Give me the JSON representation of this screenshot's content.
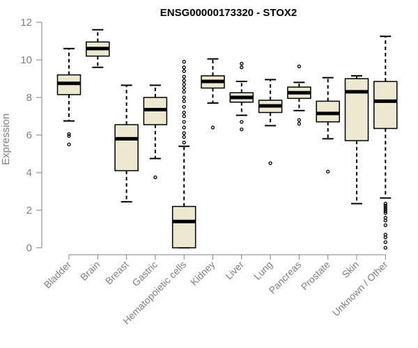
{
  "chart_data": {
    "type": "boxplot",
    "title": "ENSG00000173320 - STOX2",
    "ylabel": "Expression",
    "xlabel": "",
    "ylim": [
      0,
      12
    ],
    "yticks": [
      0,
      2,
      4,
      6,
      8,
      10,
      12
    ],
    "box_color": "#EDE8D0",
    "categories": [
      "Bladder",
      "Brain",
      "Breast",
      "Gastric",
      "Hematopoietic cells",
      "Kidney",
      "Liver",
      "Lung",
      "Pancreas",
      "Prostate",
      "Skin",
      "Unknown / Other"
    ],
    "boxes": [
      {
        "name": "Bladder",
        "min": 6.75,
        "q1": 8.15,
        "median": 8.75,
        "q3": 9.2,
        "max": 10.6,
        "outliers": [
          6.05,
          5.95,
          5.5
        ]
      },
      {
        "name": "Brain",
        "min": 9.6,
        "q1": 10.2,
        "median": 10.6,
        "q3": 10.95,
        "max": 11.6,
        "outliers": []
      },
      {
        "name": "Breast",
        "min": 2.45,
        "q1": 4.1,
        "median": 5.8,
        "q3": 6.55,
        "max": 8.65,
        "outliers": []
      },
      {
        "name": "Gastric",
        "min": 4.75,
        "q1": 6.55,
        "median": 7.35,
        "q3": 8.0,
        "max": 8.65,
        "outliers": [
          3.75
        ]
      },
      {
        "name": "Hematopoietic cells",
        "min": 0.0,
        "q1": 0.0,
        "median": 1.4,
        "q3": 2.2,
        "max": 5.4,
        "outliers": [
          5.6,
          5.9,
          6.1,
          6.4,
          6.7,
          7.0,
          7.2,
          7.5,
          7.8,
          8.0,
          8.3,
          8.5,
          8.7,
          8.9,
          9.1,
          9.4,
          9.6,
          9.9
        ]
      },
      {
        "name": "Kidney",
        "min": 7.7,
        "q1": 8.5,
        "median": 8.85,
        "q3": 9.15,
        "max": 10.05,
        "outliers": [
          6.4
        ]
      },
      {
        "name": "Liver",
        "min": 7.05,
        "q1": 7.75,
        "median": 8.0,
        "q3": 8.25,
        "max": 8.85,
        "outliers": [
          9.8,
          9.6,
          6.7,
          6.3
        ]
      },
      {
        "name": "Lung",
        "min": 6.5,
        "q1": 7.2,
        "median": 7.55,
        "q3": 7.85,
        "max": 8.95,
        "outliers": [
          4.5
        ]
      },
      {
        "name": "Pancreas",
        "min": 7.3,
        "q1": 7.95,
        "median": 8.25,
        "q3": 8.55,
        "max": 8.8,
        "outliers": [
          9.65,
          6.8,
          6.6
        ]
      },
      {
        "name": "Prostate",
        "min": 5.8,
        "q1": 6.7,
        "median": 7.15,
        "q3": 7.8,
        "max": 9.05,
        "outliers": [
          4.05
        ]
      },
      {
        "name": "Skin",
        "min": 2.35,
        "q1": 5.7,
        "median": 8.3,
        "q3": 9.0,
        "max": 9.15,
        "outliers": []
      },
      {
        "name": "Unknown / Other",
        "min": 2.65,
        "q1": 6.35,
        "median": 7.8,
        "q3": 8.85,
        "max": 11.25,
        "outliers": [
          2.35,
          2.25,
          2.15,
          2.05,
          1.95,
          1.85,
          1.6,
          1.45,
          1.2,
          0.7,
          0.55,
          0.3,
          0.0
        ]
      }
    ]
  }
}
